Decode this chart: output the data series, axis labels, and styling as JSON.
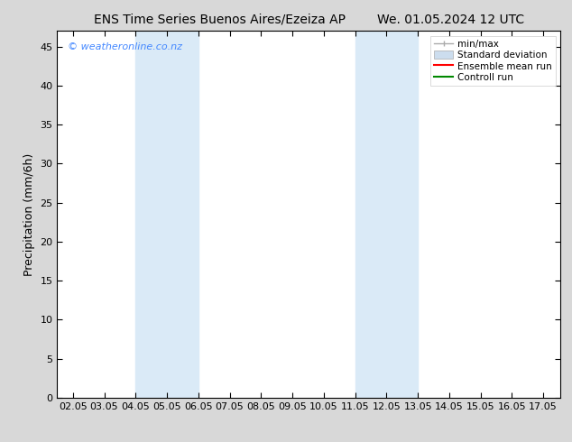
{
  "title_left": "ENS Time Series Buenos Aires/Ezeiza AP",
  "title_right": "We. 01.05.2024 12 UTC",
  "ylabel": "Precipitation (mm/6h)",
  "xlim": [
    1.5,
    17.55
  ],
  "ylim": [
    0,
    47
  ],
  "yticks": [
    0,
    5,
    10,
    15,
    20,
    25,
    30,
    35,
    40,
    45
  ],
  "xtick_labels": [
    "02.05",
    "03.05",
    "04.05",
    "05.05",
    "06.05",
    "07.05",
    "08.05",
    "09.05",
    "10.05",
    "11.05",
    "12.05",
    "13.05",
    "14.05",
    "15.05",
    "16.05",
    "17.05"
  ],
  "xtick_positions": [
    2,
    3,
    4,
    5,
    6,
    7,
    8,
    9,
    10,
    11,
    12,
    13,
    14,
    15,
    16,
    17
  ],
  "shaded_bands": [
    {
      "x_start": 4.0,
      "x_end": 6.0
    },
    {
      "x_start": 11.0,
      "x_end": 13.0
    }
  ],
  "band_color": "#daeaf7",
  "background_color": "#d8d8d8",
  "plot_bg_color": "#ffffff",
  "watermark_text": "© weatheronline.co.nz",
  "watermark_color": "#4488ff",
  "title_fontsize": 10,
  "axis_fontsize": 9,
  "tick_fontsize": 8,
  "legend_fontsize": 7.5
}
